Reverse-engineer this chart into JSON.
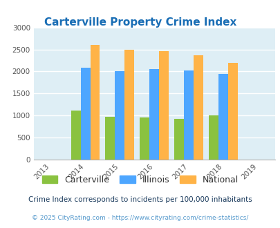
{
  "title": "Carterville Property Crime Index",
  "all_years": [
    "2013",
    "2014",
    "2015",
    "2016",
    "2017",
    "2018",
    "2019"
  ],
  "data_years": [
    2014,
    2015,
    2016,
    2017,
    2018
  ],
  "carterville": [
    1120,
    975,
    950,
    925,
    1000
  ],
  "illinois": [
    2090,
    2000,
    2050,
    2020,
    1950
  ],
  "national": [
    2600,
    2500,
    2460,
    2360,
    2190
  ],
  "color_carterville": "#8ac240",
  "color_illinois": "#4da6ff",
  "color_national": "#ffb347",
  "ylim": [
    0,
    3000
  ],
  "yticks": [
    0,
    500,
    1000,
    1500,
    2000,
    2500,
    3000
  ],
  "bg_color": "#deeef5",
  "legend_labels": [
    "Carterville",
    "Illinois",
    "National"
  ],
  "footnote1": "Crime Index corresponds to incidents per 100,000 inhabitants",
  "footnote2": "© 2025 CityRating.com - https://www.cityrating.com/crime-statistics/",
  "bar_width": 0.28,
  "title_color": "#1a6eb5",
  "footnote1_color": "#1a3a5c",
  "footnote2_color": "#5599cc"
}
